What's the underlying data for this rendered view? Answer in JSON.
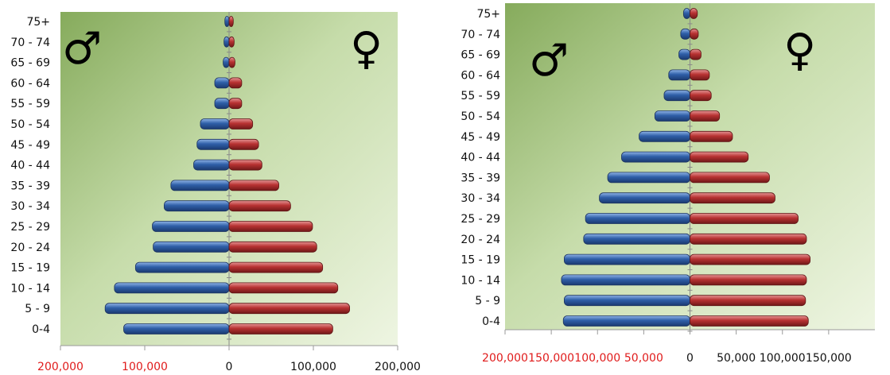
{
  "colors": {
    "male": "#2f5fa8",
    "female": "#b83232",
    "tick_red": "#e01b1b",
    "tick_black": "#111111"
  },
  "symbols": {
    "male": "♂",
    "female": "♀"
  },
  "chart_data": [
    {
      "type": "bar",
      "orientation": "horizontal-population-pyramid",
      "title": "",
      "categories": [
        "0-4",
        "5 - 9",
        "10 - 14",
        "15 - 19",
        "20 - 24",
        "25 - 29",
        "30 - 34",
        "35 - 39",
        "40 - 44",
        "45 - 49",
        "50 - 54",
        "55 - 59",
        "60 - 64",
        "65 - 69",
        "70 - 74",
        "75+"
      ],
      "series": [
        {
          "values": [
            125000,
            147000,
            136000,
            111000,
            90000,
            91000,
            77000,
            69000,
            42000,
            38000,
            34000,
            17000,
            17000,
            7000,
            6000,
            5000
          ]
        },
        {
          "values": [
            123000,
            143000,
            129000,
            111000,
            104000,
            99000,
            73000,
            59000,
            39000,
            35000,
            28000,
            15000,
            15000,
            7000,
            6000,
            5000
          ]
        }
      ],
      "xlim": [
        -200000,
        200000
      ],
      "xticks": [
        {
          "value": -200000,
          "label": "200,000",
          "color": "red"
        },
        {
          "value": -100000,
          "label": "100,000",
          "color": "red"
        },
        {
          "value": 0,
          "label": "0",
          "color": "black"
        },
        {
          "value": 100000,
          "label": "100,000",
          "color": "black"
        },
        {
          "value": 200000,
          "label": "200,000",
          "color": "black"
        }
      ],
      "background": "green gradient",
      "grid": false
    },
    {
      "type": "bar",
      "orientation": "horizontal-population-pyramid",
      "title": "",
      "categories": [
        "0-4",
        "5 - 9",
        "10 - 14",
        "15 - 19",
        "20 - 24",
        "25 - 29",
        "30 - 34",
        "35 - 39",
        "40 - 44",
        "45 - 49",
        "50 - 54",
        "55 - 59",
        "60 - 64",
        "65 - 69",
        "70 - 74",
        "75+"
      ],
      "series": [
        {
          "values": [
            137000,
            136000,
            139000,
            136000,
            115000,
            113000,
            98000,
            89000,
            74000,
            55000,
            38000,
            28000,
            23000,
            12000,
            10000,
            7000
          ]
        },
        {
          "values": [
            128000,
            125000,
            126000,
            130000,
            126000,
            117000,
            92000,
            86000,
            63000,
            46000,
            32000,
            23000,
            21000,
            12000,
            9000,
            8000
          ]
        }
      ],
      "xlim": [
        -200000,
        200000
      ],
      "xticks": [
        {
          "value": -200000,
          "label": "200,000",
          "color": "red"
        },
        {
          "value": -150000,
          "label": "150,000",
          "color": "red"
        },
        {
          "value": -100000,
          "label": "100,000",
          "color": "red"
        },
        {
          "value": -50000,
          "label": "50,000",
          "color": "red"
        },
        {
          "value": 0,
          "label": "0",
          "color": "black"
        },
        {
          "value": 50000,
          "label": "50,000",
          "color": "black"
        },
        {
          "value": 100000,
          "label": "100,000",
          "color": "black"
        },
        {
          "value": 150000,
          "label": "150,000",
          "color": "black"
        }
      ],
      "background": "green gradient",
      "grid": false
    }
  ]
}
